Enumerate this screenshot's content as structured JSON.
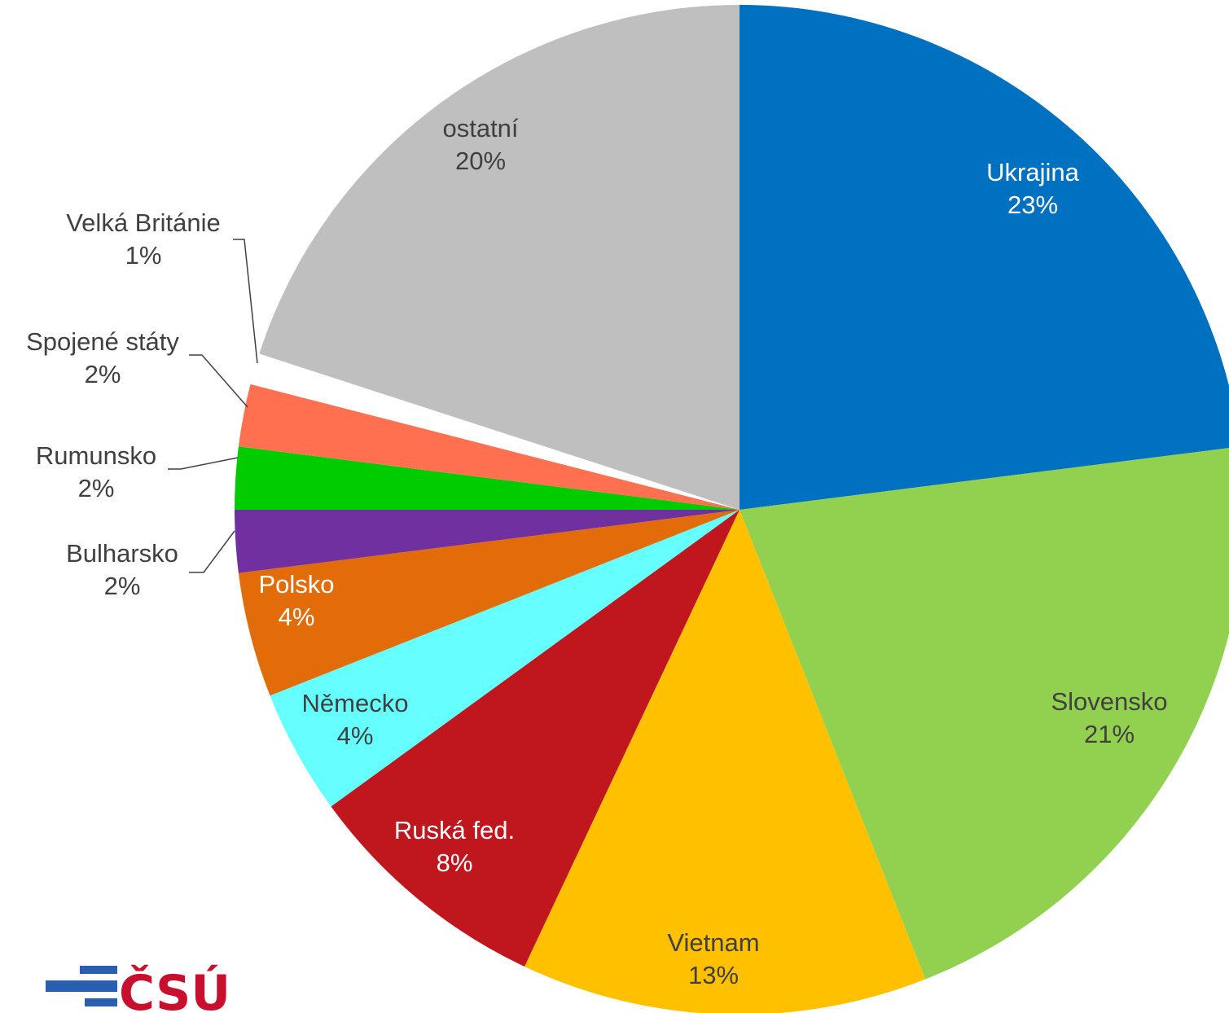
{
  "chart_data": {
    "type": "pie",
    "slices": [
      {
        "label": "Ukrajina",
        "value": 23,
        "value_label": "23%",
        "color": "#0070c0",
        "text_color": "#ffffff"
      },
      {
        "label": "Slovensko",
        "value": 21,
        "value_label": "21%",
        "color": "#92d050",
        "text_color": "#404040"
      },
      {
        "label": "Vietnam",
        "value": 13,
        "value_label": "13%",
        "color": "#ffc000",
        "text_color": "#404040"
      },
      {
        "label": "Ruská fed.",
        "value": 8,
        "value_label": "8%",
        "color": "#c0171f",
        "text_color": "#ffffff"
      },
      {
        "label": "Německo",
        "value": 4,
        "value_label": "4%",
        "color": "#66ffff",
        "text_color": "#404040"
      },
      {
        "label": "Polsko",
        "value": 4,
        "value_label": "4%",
        "color": "#e36c0a",
        "text_color": "#ffffff"
      },
      {
        "label": "Bulharsko",
        "value": 2,
        "value_label": "2%",
        "color": "#7030a0",
        "text_color": "#404040"
      },
      {
        "label": "Rumunsko",
        "value": 2,
        "value_label": "2%",
        "color": "#00cc00",
        "text_color": "#404040"
      },
      {
        "label": "Spojené státy",
        "value": 2,
        "value_label": "2%",
        "color": "#ff7050",
        "text_color": "#404040"
      },
      {
        "label": "Velká Británie",
        "value": 1,
        "value_label": "1%",
        "color": "#ffffff",
        "text_color": "#404040"
      },
      {
        "label": "ostatní",
        "value": 20,
        "value_label": "20%",
        "color": "#bfbfbf",
        "text_color": "#404040"
      }
    ]
  },
  "logo": {
    "text": "ČSÚ"
  }
}
